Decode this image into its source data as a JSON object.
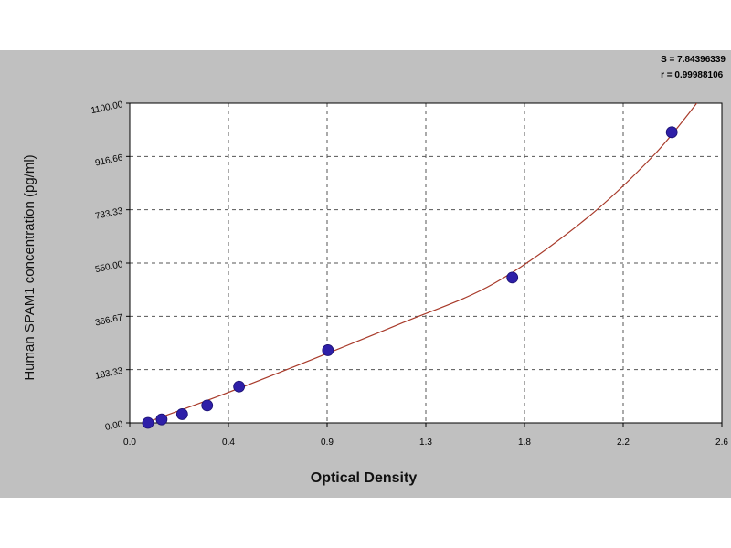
{
  "stats": {
    "s_line": "S = 7.84396339",
    "r_line": "r = 0.99988106"
  },
  "chart_data": {
    "type": "scatter",
    "xlabel": "Optical Density",
    "ylabel": "Human SPAM1 concentration (pg/ml)",
    "xlim": [
      0.0,
      2.6
    ],
    "ylim": [
      0.0,
      1100.0
    ],
    "x_ticks": [
      "0.0",
      "0.4",
      "0.9",
      "1.3",
      "1.8",
      "2.2",
      "2.6"
    ],
    "y_ticks": [
      "0.00",
      "183.33",
      "366.67",
      "550.00",
      "733.33",
      "916.66",
      "1100.00"
    ],
    "grid": true,
    "points": [
      {
        "x": 0.08,
        "y": 0
      },
      {
        "x": 0.14,
        "y": 12
      },
      {
        "x": 0.23,
        "y": 30
      },
      {
        "x": 0.34,
        "y": 60
      },
      {
        "x": 0.48,
        "y": 125
      },
      {
        "x": 0.87,
        "y": 250
      },
      {
        "x": 1.68,
        "y": 500
      },
      {
        "x": 2.38,
        "y": 1000
      }
    ],
    "fit_curve": [
      {
        "x": 0.05,
        "y": -5
      },
      {
        "x": 0.4,
        "y": 95
      },
      {
        "x": 0.8,
        "y": 218
      },
      {
        "x": 1.2,
        "y": 345
      },
      {
        "x": 1.6,
        "y": 480
      },
      {
        "x": 2.0,
        "y": 700
      },
      {
        "x": 2.3,
        "y": 920
      },
      {
        "x": 2.5,
        "y": 1110
      }
    ],
    "colors": {
      "point": "#2e1fa8",
      "curve": "#a83a2a",
      "grid": "#555555",
      "plot_bg": "#ffffff",
      "frame_bg": "#c0c0c0"
    }
  }
}
